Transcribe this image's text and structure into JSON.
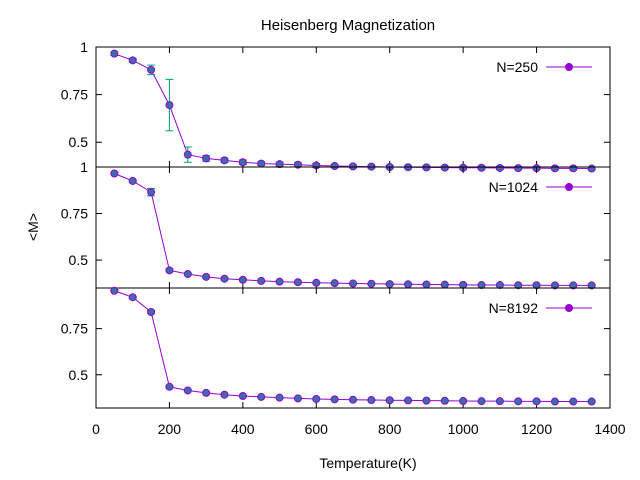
{
  "chart_data": {
    "type": "line",
    "title": "Heisenberg Magnetization",
    "xlabel": "Temperature(K)",
    "ylabel": "<M>",
    "xlim": [
      0,
      1400
    ],
    "x_ticks": [
      "0",
      "200",
      "400",
      "600",
      "800",
      "1000",
      "1200",
      "1400"
    ],
    "grid": false,
    "legend_position": "top-right",
    "colors": {
      "line": "#9400d3",
      "marker": "#9400d3",
      "marker_face": "#3a6ea5",
      "errorbar": "#009e73"
    },
    "x": [
      50,
      100,
      150,
      200,
      250,
      300,
      350,
      400,
      450,
      500,
      550,
      600,
      650,
      700,
      750,
      800,
      850,
      900,
      950,
      1000,
      1050,
      1100,
      1150,
      1200,
      1250,
      1300,
      1350
    ],
    "panels": [
      {
        "series_name": "N=250",
        "ylim": [
          0.37,
          1.0
        ],
        "y_ticks": [
          "1",
          "0.75",
          "0.5"
        ],
        "y": [
          0.965,
          0.93,
          0.88,
          0.695,
          0.435,
          0.415,
          0.405,
          0.395,
          0.388,
          0.385,
          0.382,
          0.378,
          0.375,
          0.373,
          0.372,
          0.37,
          0.369,
          0.368,
          0.367,
          0.366,
          0.366,
          0.365,
          0.364,
          0.364,
          0.363,
          0.363,
          0.362
        ],
        "err": [
          0.01,
          0.01,
          0.025,
          0.135,
          0.04,
          0.015,
          0.012,
          0.012,
          0.01,
          0.01,
          0.01,
          0.01,
          0.008,
          0.008,
          0.008,
          0.008,
          0.008,
          0.008,
          0.008,
          0.008,
          0.008,
          0.008,
          0.008,
          0.008,
          0.008,
          0.008,
          0.008
        ]
      },
      {
        "series_name": "N=1024",
        "ylim": [
          0.35,
          1.0
        ],
        "y_ticks": [
          "1",
          "0.75",
          "0.5"
        ],
        "y": [
          0.965,
          0.925,
          0.865,
          0.445,
          0.425,
          0.41,
          0.4,
          0.394,
          0.388,
          0.384,
          0.381,
          0.378,
          0.376,
          0.374,
          0.373,
          0.371,
          0.37,
          0.369,
          0.368,
          0.367,
          0.366,
          0.366,
          0.365,
          0.365,
          0.364,
          0.364,
          0.364
        ],
        "err": [
          0.006,
          0.006,
          0.02,
          0.008,
          0.006,
          0.005,
          0.005,
          0.005,
          0.004,
          0.004,
          0.004,
          0.004,
          0.004,
          0.004,
          0.004,
          0.004,
          0.004,
          0.004,
          0.004,
          0.004,
          0.004,
          0.004,
          0.004,
          0.004,
          0.004,
          0.004,
          0.004
        ]
      },
      {
        "series_name": "N=8192",
        "ylim": [
          0.32,
          0.97
        ],
        "y_ticks": [
          "0.75",
          "0.5"
        ],
        "y": [
          0.955,
          0.92,
          0.84,
          0.435,
          0.415,
          0.402,
          0.392,
          0.385,
          0.38,
          0.376,
          0.372,
          0.369,
          0.367,
          0.365,
          0.363,
          0.362,
          0.361,
          0.36,
          0.359,
          0.358,
          0.357,
          0.357,
          0.356,
          0.356,
          0.355,
          0.355,
          0.355
        ],
        "err": [
          0.004,
          0.004,
          0.008,
          0.004,
          0.003,
          0.003,
          0.003,
          0.003,
          0.003,
          0.003,
          0.003,
          0.003,
          0.003,
          0.003,
          0.003,
          0.003,
          0.003,
          0.003,
          0.003,
          0.003,
          0.003,
          0.003,
          0.003,
          0.003,
          0.003,
          0.003,
          0.003
        ]
      }
    ]
  }
}
